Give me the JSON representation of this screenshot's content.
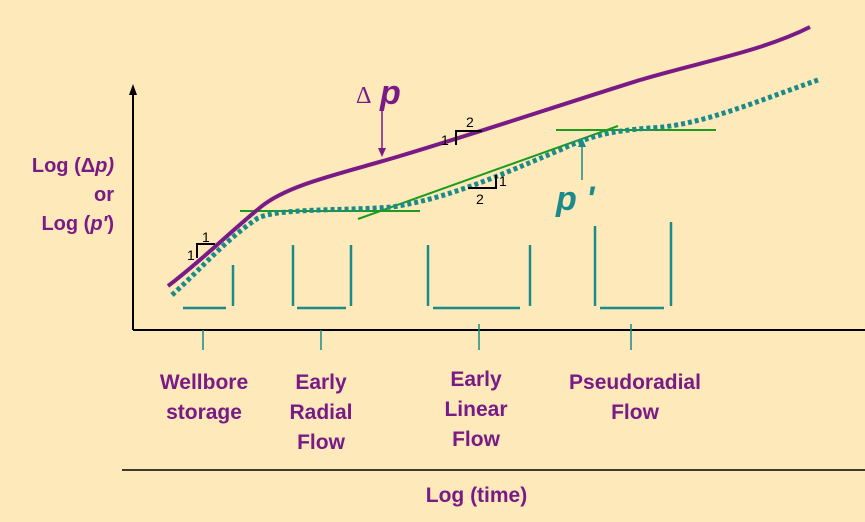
{
  "y_label": {
    "line1_prefix": "Log (Δ",
    "line1_var": "p",
    "line1_suffix": ")",
    "line2": "or",
    "line3_prefix": "Log (",
    "line3_var": "p′",
    "line3_suffix": ")"
  },
  "x_label": "Log (time)",
  "curve_labels": {
    "delta_symbol": "Δ",
    "delta_p": "p",
    "derivative": "p '"
  },
  "slope_labels": {
    "one_top": "1",
    "two_top": "2",
    "one_bottom": "1",
    "two_bottom": "2",
    "ws_one_a": "1",
    "ws_one_b": "1"
  },
  "regions": [
    {
      "lines": [
        "Wellbore",
        "storage"
      ]
    },
    {
      "lines": [
        "Early",
        "Radial",
        "Flow"
      ]
    },
    {
      "lines": [
        "Early",
        "Linear",
        "Flow"
      ]
    },
    {
      "lines": [
        "Pseudoradial",
        "Flow"
      ]
    }
  ],
  "colors": {
    "background": "#fde9b9",
    "pressure": "#7a1a86",
    "derivative": "#1a8a8a",
    "tangent": "#1f9a1f",
    "axis": "#000000"
  }
}
